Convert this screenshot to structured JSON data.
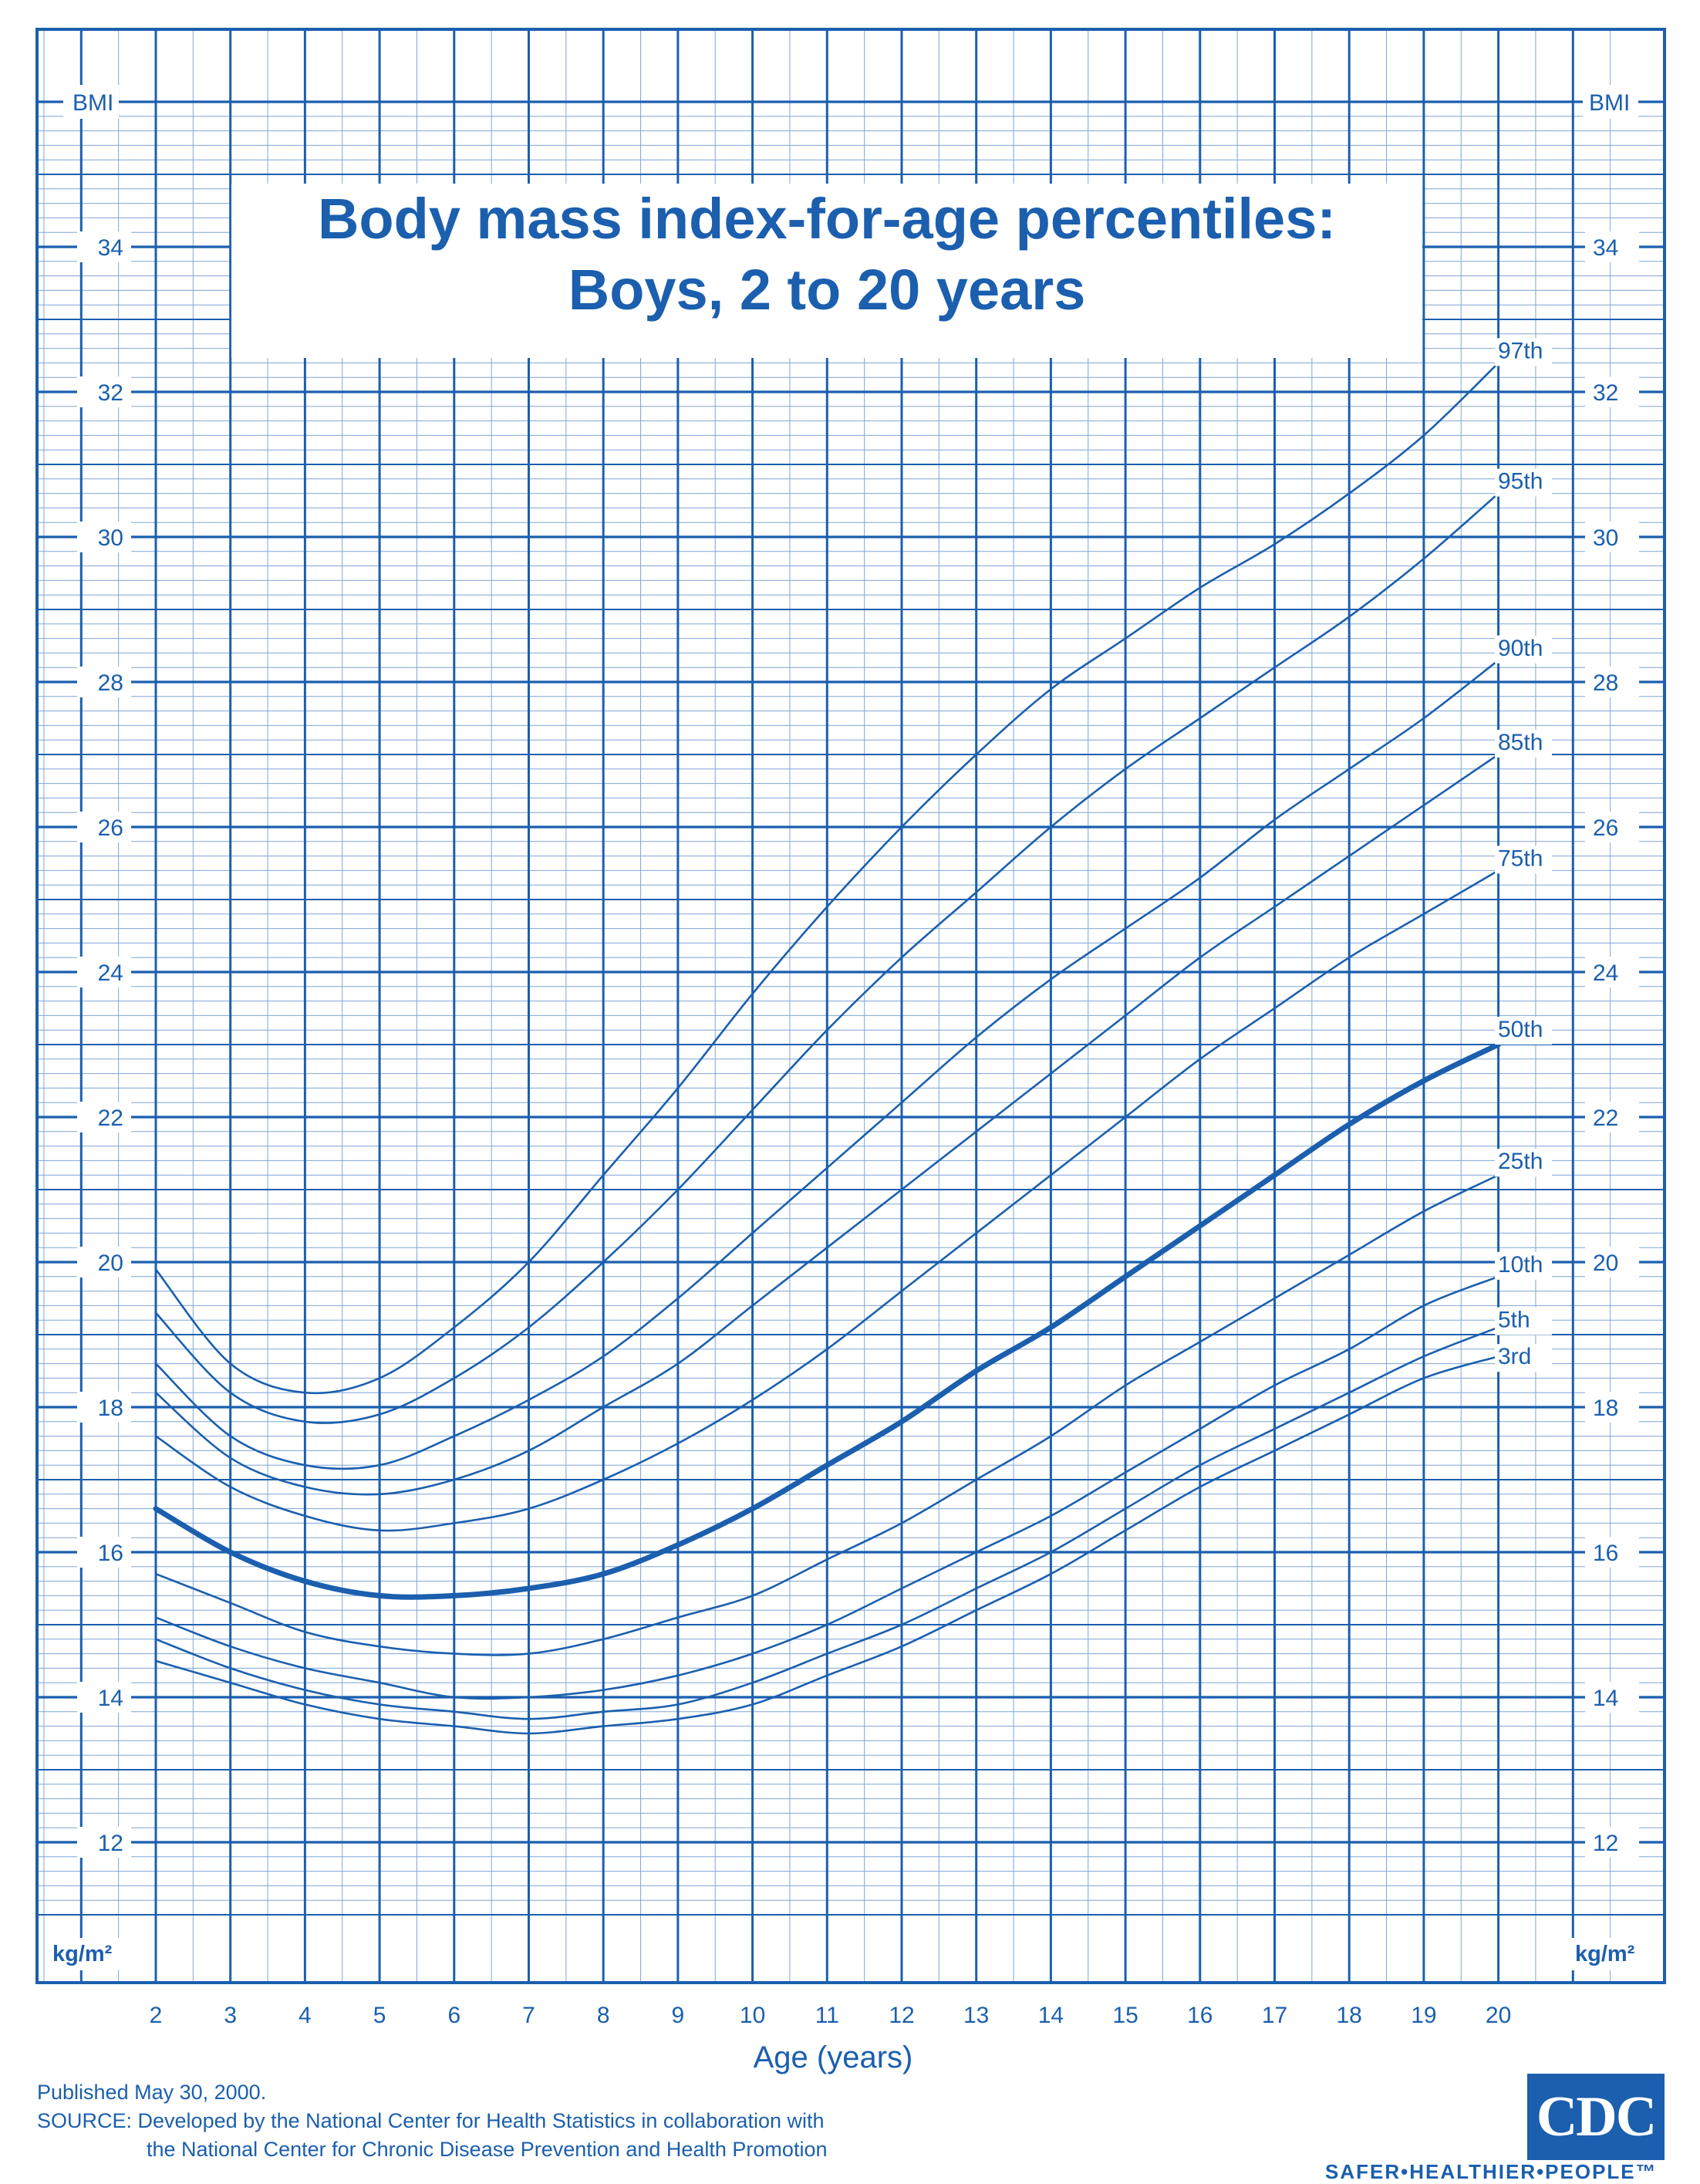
{
  "header": {
    "title_line1": "Body mass index-for-age percentiles:",
    "title_line2": "Boys, 2 to 20 years"
  },
  "chart_data": {
    "type": "line",
    "title": "Body mass index-for-age percentiles: Boys, 2 to 20 years",
    "xlabel": "Age (years)",
    "ylabel": "BMI",
    "y_unit_label": "kg/m²",
    "xlim": [
      2,
      20
    ],
    "ylim": [
      11,
      36
    ],
    "x_ticks": [
      2,
      3,
      4,
      5,
      6,
      7,
      8,
      9,
      10,
      11,
      12,
      13,
      14,
      15,
      16,
      17,
      18,
      19,
      20
    ],
    "y_ticks": [
      12,
      14,
      16,
      18,
      20,
      22,
      24,
      26,
      28,
      30,
      32,
      34
    ],
    "grid": true,
    "ages": [
      2,
      3,
      4,
      5,
      6,
      7,
      8,
      9,
      10,
      11,
      12,
      13,
      14,
      15,
      16,
      17,
      18,
      19,
      20
    ],
    "series": [
      {
        "name": "97th",
        "values": [
          19.9,
          18.6,
          18.2,
          18.4,
          19.1,
          20.0,
          21.2,
          22.4,
          23.7,
          24.9,
          26.0,
          27.0,
          27.9,
          28.6,
          29.3,
          29.9,
          30.6,
          31.4,
          32.4
        ]
      },
      {
        "name": "95th",
        "values": [
          19.3,
          18.2,
          17.8,
          17.9,
          18.4,
          19.1,
          20.0,
          21.0,
          22.1,
          23.2,
          24.2,
          25.1,
          26.0,
          26.8,
          27.5,
          28.2,
          28.9,
          29.7,
          30.6
        ]
      },
      {
        "name": "90th",
        "values": [
          18.6,
          17.6,
          17.2,
          17.2,
          17.6,
          18.1,
          18.7,
          19.5,
          20.4,
          21.3,
          22.2,
          23.1,
          23.9,
          24.6,
          25.3,
          26.1,
          26.8,
          27.5,
          28.3
        ]
      },
      {
        "name": "85th",
        "values": [
          18.2,
          17.3,
          16.9,
          16.8,
          17.0,
          17.4,
          18.0,
          18.6,
          19.4,
          20.2,
          21.0,
          21.8,
          22.6,
          23.4,
          24.2,
          24.9,
          25.6,
          26.3,
          27.0
        ]
      },
      {
        "name": "75th",
        "values": [
          17.6,
          16.9,
          16.5,
          16.3,
          16.4,
          16.6,
          17.0,
          17.5,
          18.1,
          18.8,
          19.6,
          20.4,
          21.2,
          22.0,
          22.8,
          23.5,
          24.2,
          24.8,
          25.4
        ]
      },
      {
        "name": "50th",
        "values": [
          16.6,
          16.0,
          15.6,
          15.4,
          15.4,
          15.5,
          15.7,
          16.1,
          16.6,
          17.2,
          17.8,
          18.5,
          19.1,
          19.8,
          20.5,
          21.2,
          21.9,
          22.5,
          23.0
        ]
      },
      {
        "name": "25th",
        "values": [
          15.7,
          15.3,
          14.9,
          14.7,
          14.6,
          14.6,
          14.8,
          15.1,
          15.4,
          15.9,
          16.4,
          17.0,
          17.6,
          18.3,
          18.9,
          19.5,
          20.1,
          20.7,
          21.2
        ]
      },
      {
        "name": "10th",
        "values": [
          15.1,
          14.7,
          14.4,
          14.2,
          14.0,
          14.0,
          14.1,
          14.3,
          14.6,
          15.0,
          15.5,
          16.0,
          16.5,
          17.1,
          17.7,
          18.3,
          18.8,
          19.4,
          19.8
        ]
      },
      {
        "name": "5th",
        "values": [
          14.8,
          14.4,
          14.1,
          13.9,
          13.8,
          13.7,
          13.8,
          13.9,
          14.2,
          14.6,
          15.0,
          15.5,
          16.0,
          16.6,
          17.2,
          17.7,
          18.2,
          18.7,
          19.1
        ]
      },
      {
        "name": "3rd",
        "values": [
          14.5,
          14.2,
          13.9,
          13.7,
          13.6,
          13.5,
          13.6,
          13.7,
          13.9,
          14.3,
          14.7,
          15.2,
          15.7,
          16.3,
          16.9,
          17.4,
          17.9,
          18.4,
          18.7
        ]
      }
    ],
    "emphasized_series": "50th",
    "line_color": "#1b5fae"
  },
  "axis": {
    "left_label": "BMI",
    "right_label": "BMI",
    "unit_left": "kg/m²",
    "unit_right": "kg/m²"
  },
  "footer": {
    "published": "Published May 30, 2000.",
    "source_line1": "SOURCE: Developed by the National Center for Health Statistics in collaboration with",
    "source_line2": "the National Center for Chronic Disease Prevention and Health Promotion"
  },
  "logo": {
    "text": "CDC",
    "tagline": "SAFER•HEALTHIER•PEOPLE™"
  },
  "colors": {
    "primary": "#1b5fae",
    "grid_minor": "#7ea6d6",
    "background": "#ffffff"
  }
}
